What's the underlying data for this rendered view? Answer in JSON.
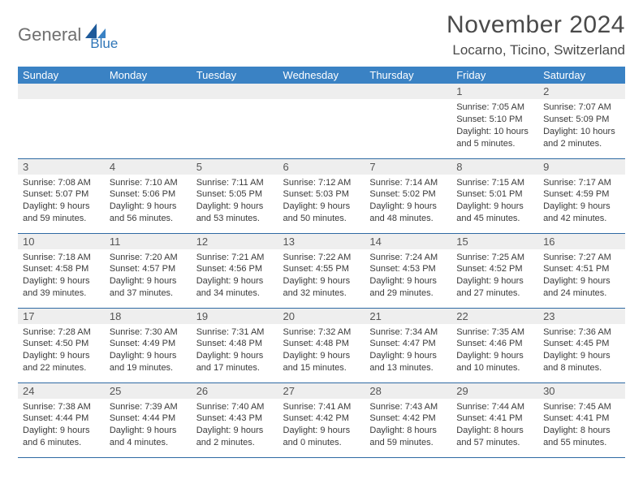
{
  "brand": {
    "part1": "General",
    "part2": "Blue"
  },
  "title": "November 2024",
  "location": "Locarno, Ticino, Switzerland",
  "colors": {
    "header_bg": "#3a82c4",
    "header_text": "#ffffff",
    "daynum_bg": "#eeeeee",
    "row_divider": "#2f6aa3",
    "brand_gray": "#6f6f6f",
    "brand_blue": "#2f76b8",
    "body_text": "#3a3a3a"
  },
  "weekdays": [
    "Sunday",
    "Monday",
    "Tuesday",
    "Wednesday",
    "Thursday",
    "Friday",
    "Saturday"
  ],
  "weeks": [
    [
      null,
      null,
      null,
      null,
      null,
      {
        "n": "1",
        "sr": "7:05 AM",
        "ss": "5:10 PM",
        "dl": "10 hours and 5 minutes."
      },
      {
        "n": "2",
        "sr": "7:07 AM",
        "ss": "5:09 PM",
        "dl": "10 hours and 2 minutes."
      }
    ],
    [
      {
        "n": "3",
        "sr": "7:08 AM",
        "ss": "5:07 PM",
        "dl": "9 hours and 59 minutes."
      },
      {
        "n": "4",
        "sr": "7:10 AM",
        "ss": "5:06 PM",
        "dl": "9 hours and 56 minutes."
      },
      {
        "n": "5",
        "sr": "7:11 AM",
        "ss": "5:05 PM",
        "dl": "9 hours and 53 minutes."
      },
      {
        "n": "6",
        "sr": "7:12 AM",
        "ss": "5:03 PM",
        "dl": "9 hours and 50 minutes."
      },
      {
        "n": "7",
        "sr": "7:14 AM",
        "ss": "5:02 PM",
        "dl": "9 hours and 48 minutes."
      },
      {
        "n": "8",
        "sr": "7:15 AM",
        "ss": "5:01 PM",
        "dl": "9 hours and 45 minutes."
      },
      {
        "n": "9",
        "sr": "7:17 AM",
        "ss": "4:59 PM",
        "dl": "9 hours and 42 minutes."
      }
    ],
    [
      {
        "n": "10",
        "sr": "7:18 AM",
        "ss": "4:58 PM",
        "dl": "9 hours and 39 minutes."
      },
      {
        "n": "11",
        "sr": "7:20 AM",
        "ss": "4:57 PM",
        "dl": "9 hours and 37 minutes."
      },
      {
        "n": "12",
        "sr": "7:21 AM",
        "ss": "4:56 PM",
        "dl": "9 hours and 34 minutes."
      },
      {
        "n": "13",
        "sr": "7:22 AM",
        "ss": "4:55 PM",
        "dl": "9 hours and 32 minutes."
      },
      {
        "n": "14",
        "sr": "7:24 AM",
        "ss": "4:53 PM",
        "dl": "9 hours and 29 minutes."
      },
      {
        "n": "15",
        "sr": "7:25 AM",
        "ss": "4:52 PM",
        "dl": "9 hours and 27 minutes."
      },
      {
        "n": "16",
        "sr": "7:27 AM",
        "ss": "4:51 PM",
        "dl": "9 hours and 24 minutes."
      }
    ],
    [
      {
        "n": "17",
        "sr": "7:28 AM",
        "ss": "4:50 PM",
        "dl": "9 hours and 22 minutes."
      },
      {
        "n": "18",
        "sr": "7:30 AM",
        "ss": "4:49 PM",
        "dl": "9 hours and 19 minutes."
      },
      {
        "n": "19",
        "sr": "7:31 AM",
        "ss": "4:48 PM",
        "dl": "9 hours and 17 minutes."
      },
      {
        "n": "20",
        "sr": "7:32 AM",
        "ss": "4:48 PM",
        "dl": "9 hours and 15 minutes."
      },
      {
        "n": "21",
        "sr": "7:34 AM",
        "ss": "4:47 PM",
        "dl": "9 hours and 13 minutes."
      },
      {
        "n": "22",
        "sr": "7:35 AM",
        "ss": "4:46 PM",
        "dl": "9 hours and 10 minutes."
      },
      {
        "n": "23",
        "sr": "7:36 AM",
        "ss": "4:45 PM",
        "dl": "9 hours and 8 minutes."
      }
    ],
    [
      {
        "n": "24",
        "sr": "7:38 AM",
        "ss": "4:44 PM",
        "dl": "9 hours and 6 minutes."
      },
      {
        "n": "25",
        "sr": "7:39 AM",
        "ss": "4:44 PM",
        "dl": "9 hours and 4 minutes."
      },
      {
        "n": "26",
        "sr": "7:40 AM",
        "ss": "4:43 PM",
        "dl": "9 hours and 2 minutes."
      },
      {
        "n": "27",
        "sr": "7:41 AM",
        "ss": "4:42 PM",
        "dl": "9 hours and 0 minutes."
      },
      {
        "n": "28",
        "sr": "7:43 AM",
        "ss": "4:42 PM",
        "dl": "8 hours and 59 minutes."
      },
      {
        "n": "29",
        "sr": "7:44 AM",
        "ss": "4:41 PM",
        "dl": "8 hours and 57 minutes."
      },
      {
        "n": "30",
        "sr": "7:45 AM",
        "ss": "4:41 PM",
        "dl": "8 hours and 55 minutes."
      }
    ]
  ],
  "labels": {
    "sunrise_prefix": "Sunrise: ",
    "sunset_prefix": "Sunset: ",
    "daylight_prefix": "Daylight: "
  }
}
